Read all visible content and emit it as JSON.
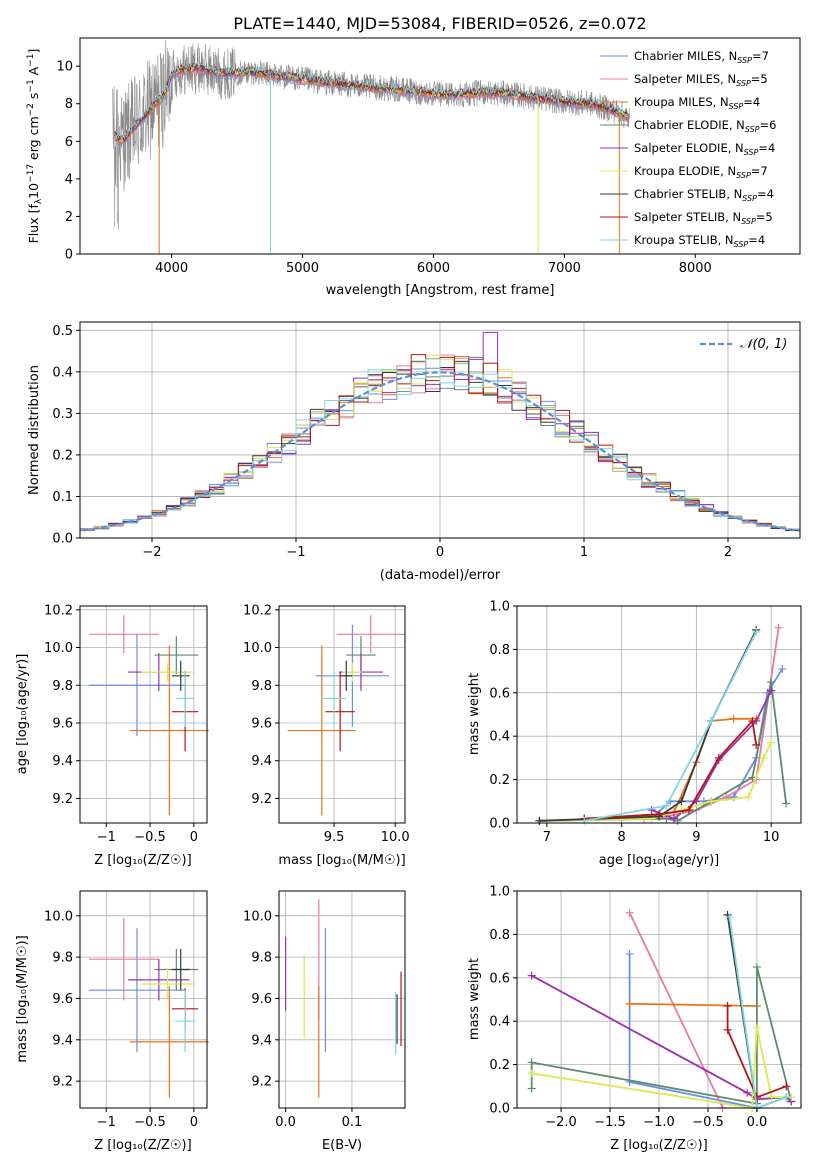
{
  "figure": {
    "title": "PLATE=1440, MJD=53084, FIBERID=0526, z=0.072"
  },
  "colors": {
    "Chabrier MILES": "#6a8ee8",
    "Salpeter MILES": "#e87aa8",
    "Kroupa MILES": "#e8751a",
    "Chabrier ELODIE": "#5f8a6e",
    "Salpeter ELODIE": "#9b2fb0",
    "Kroupa ELODIE": "#d7ea4f",
    "Chabrier STELIB": "#3a3a3a",
    "Salpeter STELIB": "#b01818",
    "Kroupa STELIB": "#7fd7e0",
    "data": "#8a8a8a",
    "gaussian": "#5b8ed6"
  },
  "chart_data": [
    {
      "type": "line",
      "panel": "spectrum",
      "xlabel": "wavelength [Angstrom, rest frame]",
      "ylabel": "Flux [f_λ10^-17 erg cm^-2 s^-1 A^-1]",
      "xlim": [
        3300,
        8800
      ],
      "ylim": [
        0,
        11.5
      ],
      "xticks": [
        4000,
        5000,
        6000,
        7000,
        8000
      ],
      "yticks": [
        0,
        2,
        4,
        6,
        8,
        10
      ],
      "legend_position": "upper right",
      "legend": [
        {
          "name": "Chabrier MILES",
          "nssp": "7"
        },
        {
          "name": "Salpeter MILES",
          "nssp": "5"
        },
        {
          "name": "Kroupa MILES",
          "nssp": "4"
        },
        {
          "name": "Chabrier ELODIE",
          "nssp": "6"
        },
        {
          "name": "Salpeter ELODIE",
          "nssp": "4"
        },
        {
          "name": "Kroupa ELODIE",
          "nssp": "7"
        },
        {
          "name": "Chabrier STELIB",
          "nssp": "4"
        },
        {
          "name": "Salpeter STELIB",
          "nssp": "5"
        },
        {
          "name": "Kroupa STELIB",
          "nssp": "4"
        }
      ],
      "continuum": {
        "x": [
          3550,
          3620,
          3700,
          3800,
          3900,
          3950,
          4000,
          4050,
          4200,
          4400,
          4600,
          4800,
          5000,
          5200,
          5500,
          5800,
          6000,
          6200,
          6400,
          6600,
          6800,
          7000,
          7200,
          7400,
          7500
        ],
        "y": [
          6.3,
          6.0,
          6.6,
          7.4,
          8.2,
          8.5,
          9.5,
          9.8,
          9.9,
          9.6,
          9.7,
          9.5,
          9.3,
          9.1,
          8.9,
          8.7,
          8.5,
          8.5,
          8.6,
          8.5,
          8.3,
          8.1,
          8.0,
          7.6,
          7.2
        ]
      }
    },
    {
      "type": "line",
      "panel": "residuals",
      "xlabel": "(data-model)/error",
      "ylabel": "Normed distribution",
      "xlim": [
        -2.5,
        2.5
      ],
      "ylim": [
        0,
        0.52
      ],
      "xticks": [
        -2,
        -1,
        0,
        1,
        2
      ],
      "yticks": [
        0.0,
        0.1,
        0.2,
        0.3,
        0.4,
        0.5
      ],
      "legend_position": "upper right",
      "legend_label": "𝒩(0, 1)",
      "bin_width": 0.1,
      "grid": true
    },
    {
      "type": "scatter",
      "panel": "age-Z",
      "xlabel": "Z [log₁₀(Z/Z☉)]",
      "ylabel": "age  [log₁₀(age/yr)]",
      "xlim": [
        -1.3,
        0.15
      ],
      "ylim": [
        9.07,
        10.22
      ],
      "xticks": [
        -1,
        -0.5,
        0
      ],
      "yticks": [
        9.2,
        9.4,
        9.6,
        9.8,
        10.0,
        10.2
      ],
      "points": [
        {
          "series": "Chabrier MILES",
          "x": -0.65,
          "xerr": 0.55,
          "y": 9.8,
          "yerr": 0.27
        },
        {
          "series": "Salpeter MILES",
          "x": -0.8,
          "xerr": 0.4,
          "y": 10.07,
          "yerr": 0.1
        },
        {
          "series": "Kroupa MILES",
          "x": -0.28,
          "xerr": 0.45,
          "y": 9.56,
          "yerr": 0.45
        },
        {
          "series": "Chabrier ELODIE",
          "x": -0.2,
          "xerr": 0.25,
          "y": 9.96,
          "yerr": 0.1
        },
        {
          "series": "Salpeter ELODIE",
          "x": -0.4,
          "xerr": 0.35,
          "y": 9.87,
          "yerr": 0.1
        },
        {
          "series": "Kroupa ELODIE",
          "x": -0.3,
          "xerr": 0.3,
          "y": 9.87,
          "yerr": 0.05
        },
        {
          "series": "Chabrier STELIB",
          "x": -0.15,
          "xerr": 0.1,
          "y": 9.85,
          "yerr": 0.08
        },
        {
          "series": "Salpeter STELIB",
          "x": -0.1,
          "xerr": 0.15,
          "y": 9.66,
          "yerr": 0.21
        },
        {
          "series": "Kroupa STELIB",
          "x": -0.1,
          "xerr": 0.1,
          "y": 9.73,
          "yerr": 0.15
        }
      ]
    },
    {
      "type": "scatter",
      "panel": "age-mass",
      "xlabel": "mass [log₁₀(M/M☉)]",
      "ylabel": "",
      "xlim": [
        9.05,
        10.08
      ],
      "ylim": [
        9.07,
        10.22
      ],
      "xticks": [
        9.5,
        10.0
      ],
      "yticks": [
        9.2,
        9.4,
        9.6,
        9.8,
        10.0,
        10.2
      ],
      "points": [
        {
          "series": "Chabrier MILES",
          "x": 9.65,
          "xerr": 0.3,
          "y": 9.85,
          "yerr": 0.27
        },
        {
          "series": "Salpeter MILES",
          "x": 9.8,
          "xerr": 0.28,
          "y": 10.07,
          "yerr": 0.1
        },
        {
          "series": "Kroupa MILES",
          "x": 9.4,
          "xerr": 0.28,
          "y": 9.56,
          "yerr": 0.45
        },
        {
          "series": "Chabrier ELODIE",
          "x": 9.72,
          "xerr": 0.12,
          "y": 9.96,
          "yerr": 0.1
        },
        {
          "series": "Salpeter ELODIE",
          "x": 9.72,
          "xerr": 0.18,
          "y": 9.87,
          "yerr": 0.1
        },
        {
          "series": "Kroupa ELODIE",
          "x": 9.65,
          "xerr": 0.08,
          "y": 9.87,
          "yerr": 0.05
        },
        {
          "series": "Chabrier STELIB",
          "x": 9.6,
          "xerr": 0.05,
          "y": 9.85,
          "yerr": 0.08
        },
        {
          "series": "Salpeter STELIB",
          "x": 9.55,
          "xerr": 0.12,
          "y": 9.66,
          "yerr": 0.21
        },
        {
          "series": "Kroupa STELIB",
          "x": 9.5,
          "xerr": 0.1,
          "y": 9.73,
          "yerr": 0.15
        }
      ]
    },
    {
      "type": "line",
      "panel": "mass-weight-age",
      "xlabel": "age  [log₁₀(age/yr)]",
      "ylabel": "mass weight",
      "xlim": [
        6.6,
        10.4
      ],
      "ylim": [
        0,
        1.0
      ],
      "xticks": [
        7,
        8,
        9,
        10
      ],
      "yticks": [
        0.0,
        0.2,
        0.4,
        0.6,
        0.8,
        1.0
      ],
      "series": [
        {
          "name": "Chabrier MILES",
          "x": [
            6.9,
            8.4,
            8.65,
            9.1,
            9.5,
            9.8,
            9.95,
            10.15
          ],
          "y": [
            0.01,
            0.02,
            0.1,
            0.1,
            0.12,
            0.3,
            0.6,
            0.71
          ]
        },
        {
          "name": "Salpeter MILES",
          "x": [
            6.9,
            8.3,
            8.6,
            9.0,
            9.4,
            9.8,
            10.1
          ],
          "y": [
            0.01,
            0.02,
            0.03,
            0.06,
            0.12,
            0.2,
            0.9
          ]
        },
        {
          "name": "Kroupa MILES",
          "x": [
            7.5,
            8.5,
            8.7,
            9.0,
            9.2,
            9.5,
            9.8
          ],
          "y": [
            0.02,
            0.04,
            0.05,
            0.28,
            0.47,
            0.48,
            0.48
          ]
        },
        {
          "name": "Chabrier ELODIE",
          "x": [
            6.9,
            8.6,
            8.75,
            9.2,
            9.75,
            10.0,
            10.2
          ],
          "y": [
            0.01,
            0.02,
            0.01,
            0.1,
            0.21,
            0.65,
            0.09
          ]
        },
        {
          "name": "Salpeter ELODIE",
          "x": [
            8.4,
            8.7,
            9.0,
            9.3,
            9.8,
            10.0
          ],
          "y": [
            0.06,
            0.02,
            0.1,
            0.29,
            0.47,
            0.61
          ]
        },
        {
          "name": "Kroupa ELODIE",
          "x": [
            6.9,
            8.4,
            8.8,
            9.2,
            9.7,
            9.9,
            10.0
          ],
          "y": [
            0.01,
            0.02,
            0.06,
            0.1,
            0.12,
            0.3,
            0.37
          ]
        },
        {
          "name": "Chabrier STELIB",
          "x": [
            6.9,
            8.5,
            8.8,
            9.2,
            9.8
          ],
          "y": [
            0.01,
            0.03,
            0.1,
            0.47,
            0.89
          ]
        },
        {
          "name": "Salpeter STELIB",
          "x": [
            7.5,
            8.5,
            8.9,
            9.3,
            9.75,
            9.8
          ],
          "y": [
            0.02,
            0.04,
            0.06,
            0.3,
            0.47,
            0.36
          ]
        },
        {
          "name": "Kroupa STELIB",
          "x": [
            7.5,
            8.6,
            9.2,
            9.8
          ],
          "y": [
            0.01,
            0.08,
            0.47,
            0.88
          ]
        }
      ],
      "grid": true
    },
    {
      "type": "scatter",
      "panel": "mass-Z",
      "xlabel": "Z [log₁₀(Z/Z☉)]",
      "ylabel": "mass [log₁₀(M/M☉)]",
      "xlim": [
        -1.3,
        0.15
      ],
      "ylim": [
        9.07,
        10.12
      ],
      "xticks": [
        -1,
        -0.5,
        0
      ],
      "yticks": [
        9.2,
        9.4,
        9.6,
        9.8,
        10.0
      ],
      "points": [
        {
          "series": "Chabrier MILES",
          "x": -0.65,
          "xerr": 0.55,
          "y": 9.64,
          "yerr": 0.3
        },
        {
          "series": "Salpeter MILES",
          "x": -0.8,
          "xerr": 0.4,
          "y": 9.79,
          "yerr": 0.2
        },
        {
          "series": "Kroupa MILES",
          "x": -0.28,
          "xerr": 0.45,
          "y": 9.39,
          "yerr": 0.27
        },
        {
          "series": "Chabrier ELODIE",
          "x": -0.2,
          "xerr": 0.25,
          "y": 9.74,
          "yerr": 0.1
        },
        {
          "series": "Salpeter ELODIE",
          "x": -0.4,
          "xerr": 0.35,
          "y": 9.69,
          "yerr": 0.1
        },
        {
          "series": "Kroupa ELODIE",
          "x": -0.3,
          "xerr": 0.3,
          "y": 9.67,
          "yerr": 0.08
        },
        {
          "series": "Chabrier STELIB",
          "x": -0.15,
          "xerr": 0.1,
          "y": 9.74,
          "yerr": 0.1
        },
        {
          "series": "Salpeter STELIB",
          "x": -0.1,
          "xerr": 0.15,
          "y": 9.55,
          "yerr": 0.1
        },
        {
          "series": "Kroupa STELIB",
          "x": -0.1,
          "xerr": 0.12,
          "y": 9.49,
          "yerr": 0.15
        }
      ]
    },
    {
      "type": "scatter",
      "panel": "mass-EBV",
      "xlabel": "E(B-V)",
      "ylabel": "",
      "xlim": [
        -0.01,
        0.18
      ],
      "ylim": [
        9.07,
        10.12
      ],
      "xticks": [
        0.0,
        0.1
      ],
      "yticks": [
        9.2,
        9.4,
        9.6,
        9.8,
        10.0
      ],
      "points": [
        {
          "series": "Chabrier MILES",
          "x": 0.06,
          "y": 9.64,
          "yerr": 0.3
        },
        {
          "series": "Salpeter MILES",
          "x": 0.05,
          "y": 9.79,
          "yerr": 0.29
        },
        {
          "series": "Kroupa MILES",
          "x": 0.05,
          "y": 9.39,
          "yerr": 0.27
        },
        {
          "series": "Salpeter ELODIE",
          "x": 0.0,
          "y": 9.72,
          "yerr": 0.18
        },
        {
          "series": "Kroupa ELODIE",
          "x": 0.028,
          "y": 9.61,
          "yerr": 0.2
        },
        {
          "series": "Chabrier STELIB",
          "x": 0.168,
          "y": 9.5,
          "yerr": 0.12
        },
        {
          "series": "Salpeter STELIB",
          "x": 0.174,
          "y": 9.55,
          "yerr": 0.18
        },
        {
          "series": "Kroupa STELIB",
          "x": 0.166,
          "y": 9.48,
          "yerr": 0.15
        }
      ]
    },
    {
      "type": "line",
      "panel": "mass-weight-Z",
      "xlabel": "Z [log₁₀(Z/Z☉)]",
      "ylabel": "mass weight",
      "xlim": [
        -2.45,
        0.45
      ],
      "ylim": [
        0,
        1.0
      ],
      "xticks": [
        -2.0,
        -1.5,
        -1.0,
        -0.5,
        0.0
      ],
      "yticks": [
        0.0,
        0.2,
        0.4,
        0.6,
        0.8,
        1.0
      ],
      "series": [
        {
          "name": "Chabrier MILES",
          "x": [
            -1.3,
            -1.3,
            0.0,
            0.3,
            0.35
          ],
          "y": [
            0.71,
            0.12,
            0.0,
            0.05,
            0.03
          ]
        },
        {
          "name": "Salpeter MILES",
          "x": [
            -1.3,
            -0.35
          ],
          "y": [
            0.9,
            0.0
          ]
        },
        {
          "name": "Kroupa MILES",
          "x": [
            -1.3,
            0.0
          ],
          "y": [
            0.48,
            0.47
          ]
        },
        {
          "name": "Chabrier ELODIE",
          "x": [
            -2.3,
            -2.3,
            0.0,
            0.0,
            0.35
          ],
          "y": [
            0.09,
            0.21,
            0.02,
            0.65,
            0.03
          ]
        },
        {
          "name": "Salpeter ELODIE",
          "x": [
            -2.3,
            -0.1,
            0.0,
            0.3,
            0.35
          ],
          "y": [
            0.61,
            0.07,
            0.04,
            0.05,
            0.03
          ]
        },
        {
          "name": "Kroupa ELODIE",
          "x": [
            -2.3,
            -0.05,
            0.0,
            0.15,
            0.35
          ],
          "y": [
            0.16,
            0.0,
            0.37,
            0.05,
            0.05
          ]
        },
        {
          "name": "Chabrier STELIB",
          "x": [
            -0.3,
            0.0
          ],
          "y": [
            0.89,
            0.0
          ]
        },
        {
          "name": "Salpeter STELIB",
          "x": [
            -0.3,
            -0.3,
            0.0,
            0.3
          ],
          "y": [
            0.47,
            0.36,
            0.05,
            0.1
          ]
        },
        {
          "name": "Kroupa STELIB",
          "x": [
            -0.28,
            0.0,
            0.3
          ],
          "y": [
            0.88,
            0.0,
            0.05
          ]
        }
      ],
      "grid": true
    }
  ]
}
